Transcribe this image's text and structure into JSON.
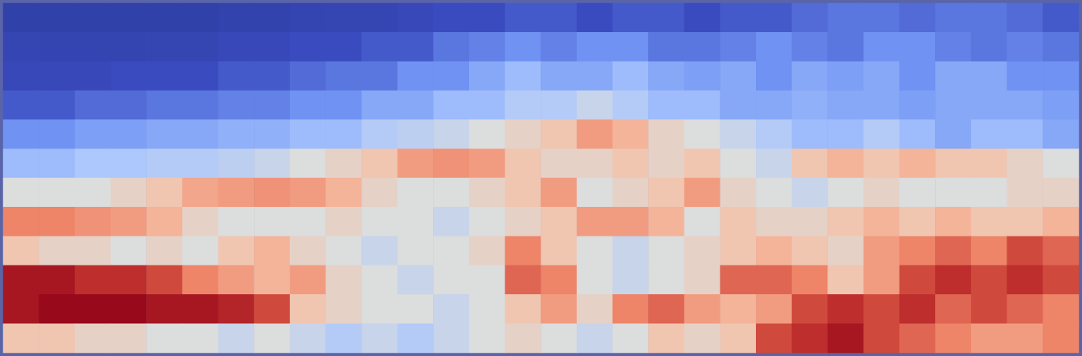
{
  "chart_data": {
    "type": "heatmap",
    "tick_labels": false,
    "color_range": [
      0,
      1
    ],
    "cells": [
      [
        0.05,
        0.05,
        0.05,
        0.05,
        0.05,
        0.05,
        0.06,
        0.06,
        0.07,
        0.08,
        0.08,
        0.1,
        0.12,
        0.12,
        0.15,
        0.15,
        0.12,
        0.15,
        0.15,
        0.12,
        0.15,
        0.15,
        0.18,
        0.2,
        0.2,
        0.18,
        0.2,
        0.2,
        0.18,
        0.15
      ],
      [
        0.08,
        0.07,
        0.07,
        0.07,
        0.08,
        0.08,
        0.1,
        0.1,
        0.12,
        0.12,
        0.15,
        0.15,
        0.2,
        0.22,
        0.25,
        0.22,
        0.25,
        0.25,
        0.2,
        0.2,
        0.22,
        0.25,
        0.22,
        0.2,
        0.25,
        0.25,
        0.22,
        0.2,
        0.22,
        0.2
      ],
      [
        0.1,
        0.1,
        0.1,
        0.12,
        0.12,
        0.12,
        0.15,
        0.15,
        0.18,
        0.2,
        0.2,
        0.25,
        0.25,
        0.3,
        0.35,
        0.3,
        0.3,
        0.35,
        0.3,
        0.28,
        0.3,
        0.25,
        0.3,
        0.28,
        0.3,
        0.25,
        0.3,
        0.3,
        0.25,
        0.25
      ],
      [
        0.15,
        0.15,
        0.18,
        0.18,
        0.2,
        0.2,
        0.22,
        0.22,
        0.25,
        0.25,
        0.3,
        0.3,
        0.35,
        0.35,
        0.4,
        0.4,
        0.45,
        0.4,
        0.35,
        0.35,
        0.3,
        0.3,
        0.32,
        0.3,
        0.3,
        0.28,
        0.3,
        0.3,
        0.3,
        0.28
      ],
      [
        0.25,
        0.25,
        0.28,
        0.28,
        0.3,
        0.3,
        0.32,
        0.32,
        0.35,
        0.35,
        0.4,
        0.42,
        0.45,
        0.5,
        0.55,
        0.6,
        0.7,
        0.65,
        0.55,
        0.5,
        0.45,
        0.4,
        0.35,
        0.35,
        0.4,
        0.35,
        0.3,
        0.35,
        0.35,
        0.3
      ],
      [
        0.35,
        0.35,
        0.38,
        0.38,
        0.4,
        0.4,
        0.42,
        0.45,
        0.5,
        0.55,
        0.6,
        0.7,
        0.72,
        0.7,
        0.6,
        0.55,
        0.55,
        0.6,
        0.55,
        0.6,
        0.5,
        0.45,
        0.6,
        0.65,
        0.6,
        0.65,
        0.6,
        0.6,
        0.55,
        0.5
      ],
      [
        0.5,
        0.5,
        0.5,
        0.55,
        0.6,
        0.68,
        0.7,
        0.72,
        0.7,
        0.65,
        0.55,
        0.5,
        0.5,
        0.55,
        0.6,
        0.7,
        0.5,
        0.55,
        0.6,
        0.7,
        0.55,
        0.5,
        0.45,
        0.5,
        0.55,
        0.5,
        0.5,
        0.5,
        0.55,
        0.55
      ],
      [
        0.75,
        0.75,
        0.72,
        0.7,
        0.65,
        0.55,
        0.5,
        0.5,
        0.5,
        0.55,
        0.5,
        0.5,
        0.45,
        0.5,
        0.55,
        0.6,
        0.7,
        0.7,
        0.65,
        0.5,
        0.6,
        0.55,
        0.55,
        0.6,
        0.65,
        0.6,
        0.65,
        0.6,
        0.6,
        0.65
      ],
      [
        0.6,
        0.55,
        0.55,
        0.5,
        0.55,
        0.5,
        0.6,
        0.65,
        0.55,
        0.5,
        0.45,
        0.5,
        0.5,
        0.55,
        0.75,
        0.6,
        0.5,
        0.45,
        0.5,
        0.55,
        0.6,
        0.65,
        0.6,
        0.55,
        0.7,
        0.75,
        0.8,
        0.75,
        0.85,
        0.8
      ],
      [
        0.95,
        0.95,
        0.9,
        0.9,
        0.85,
        0.75,
        0.7,
        0.65,
        0.7,
        0.55,
        0.5,
        0.45,
        0.5,
        0.5,
        0.8,
        0.75,
        0.5,
        0.45,
        0.5,
        0.55,
        0.8,
        0.8,
        0.75,
        0.6,
        0.7,
        0.85,
        0.9,
        0.85,
        0.9,
        0.85
      ],
      [
        0.95,
        0.98,
        0.98,
        0.98,
        0.95,
        0.95,
        0.92,
        0.85,
        0.6,
        0.55,
        0.5,
        0.5,
        0.45,
        0.5,
        0.6,
        0.7,
        0.55,
        0.75,
        0.8,
        0.7,
        0.65,
        0.7,
        0.85,
        0.9,
        0.85,
        0.9,
        0.8,
        0.85,
        0.8,
        0.75
      ],
      [
        0.6,
        0.6,
        0.55,
        0.55,
        0.5,
        0.5,
        0.45,
        0.5,
        0.45,
        0.4,
        0.45,
        0.4,
        0.45,
        0.5,
        0.55,
        0.5,
        0.45,
        0.5,
        0.6,
        0.55,
        0.6,
        0.85,
        0.9,
        0.95,
        0.85,
        0.8,
        0.75,
        0.7,
        0.7,
        0.75
      ]
    ]
  }
}
